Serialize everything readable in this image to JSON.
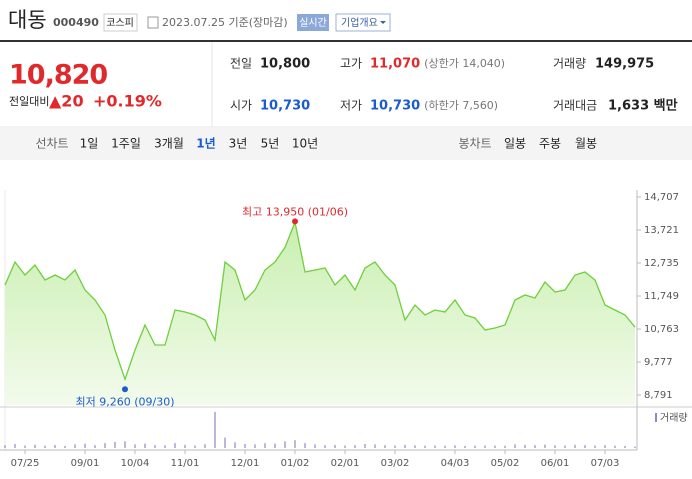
{
  "header": {
    "name": "대동",
    "code": "000490",
    "market": "코스피",
    "date": "2023.07.25 기준(장마감)",
    "realtime": "실시간",
    "company_info": "기업개요"
  },
  "quote": {
    "price": "10,820",
    "change_label": "전일대비",
    "change": "▲20",
    "change_rate": "+0.19%",
    "color": "#e0292b"
  },
  "stats": [
    {
      "label": "전일",
      "value": "10,800",
      "color": "#222222"
    },
    {
      "label": "고가",
      "value": "11,070",
      "note": "(상한가 14,040)",
      "color": "#e0292b"
    },
    {
      "label": "거래량",
      "value": "149,975",
      "color": "#222222"
    },
    {
      "label": "시가",
      "value": "10,730",
      "color": "#1a5ccc"
    },
    {
      "label": "저가",
      "value": "10,730",
      "note": "(하한가 7,560)",
      "color": "#1a5ccc"
    },
    {
      "label": "거래대금",
      "value": "1,633 백만",
      "color": "#222222"
    }
  ],
  "tabs": {
    "line_label": "선차트",
    "line": [
      "1일",
      "1주일",
      "3개월",
      "1년",
      "3년",
      "5년",
      "10년"
    ],
    "active_index": 3,
    "candle_label": "봉차트",
    "candle": [
      "일봉",
      "주봉",
      "월봉"
    ]
  },
  "chart_data": {
    "type": "line",
    "color": "#6fcf3c",
    "categories": [
      null,
      null,
      "07/25",
      null,
      null,
      null,
      null,
      null,
      "09/01",
      null,
      null,
      null,
      null,
      "10/04",
      null,
      null,
      null,
      null,
      "11/01",
      null,
      null,
      null,
      null,
      null,
      "12/01",
      null,
      null,
      null,
      null,
      "01/02",
      null,
      null,
      null,
      null,
      "02/01",
      null,
      null,
      null,
      null,
      "03/02",
      null,
      null,
      null,
      null,
      null,
      "04/03",
      null,
      null,
      null,
      null,
      "05/02",
      null,
      null,
      null,
      null,
      "06/01",
      null,
      null,
      null,
      null,
      "07/03",
      null,
      null,
      null
    ],
    "values": [
      12078,
      12765,
      12376,
      12675,
      12227,
      12376,
      12227,
      12526,
      11928,
      11630,
      11181,
      10136,
      9260,
      10136,
      10883,
      10285,
      10285,
      11331,
      11271,
      11181,
      11032,
      10434,
      12765,
      12526,
      11630,
      11928,
      12526,
      12765,
      13200,
      13950,
      12466,
      12526,
      12585,
      12078,
      12376,
      11928,
      12585,
      12765,
      12376,
      12078,
      11032,
      11480,
      11181,
      11331,
      11271,
      11630,
      11181,
      11092,
      10733,
      10793,
      10883,
      11630,
      11779,
      11690,
      12167,
      11869,
      11928,
      12376,
      12466,
      12227,
      11480,
      11331,
      11181,
      10820
    ],
    "ylim": [
      8791,
      14707
    ],
    "yticks": [
      {
        "value": 14707,
        "label": "14,707"
      },
      {
        "value": 13721,
        "label": "13,721"
      },
      {
        "value": 12735,
        "label": "12,735"
      },
      {
        "value": 11749,
        "label": "11,749"
      },
      {
        "value": 10763,
        "label": "10,763"
      },
      {
        "value": 9777,
        "label": "9,777"
      },
      {
        "value": 8791,
        "label": "8,791"
      }
    ],
    "annotations": [
      {
        "text": "최고 13,950 (01/06)",
        "at": "max",
        "color": "#e0292b"
      },
      {
        "text": "최저 9,260 (09/30)",
        "at": "min",
        "color": "#1a5ccc"
      }
    ],
    "volume": {
      "name": "거래량",
      "color": "#9088c0",
      "ylim": [
        0,
        4000000
      ],
      "values": [
        300000,
        420000,
        260000,
        350000,
        240000,
        310000,
        220000,
        380000,
        450000,
        300000,
        520000,
        640000,
        700000,
        380000,
        460000,
        300000,
        280000,
        520000,
        330000,
        260000,
        400000,
        3800000,
        1100000,
        600000,
        420000,
        380000,
        500000,
        460000,
        700000,
        820000,
        520000,
        380000,
        300000,
        320000,
        260000,
        300000,
        420000,
        380000,
        300000,
        260000,
        340000,
        280000,
        240000,
        260000,
        230000,
        280000,
        220000,
        240000,
        260000,
        250000,
        230000,
        380000,
        330000,
        300000,
        360000,
        280000,
        260000,
        340000,
        300000,
        260000,
        300000,
        240000,
        220000,
        150000
      ]
    }
  }
}
